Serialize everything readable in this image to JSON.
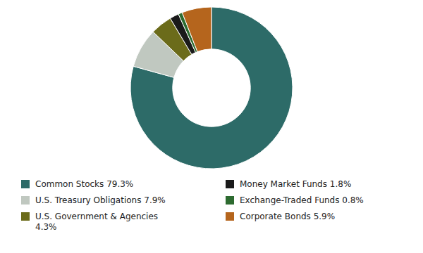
{
  "chart_data": {
    "type": "pie",
    "categories": [
      "Common Stocks 79.3%",
      "U.S. Treasury Obligations 7.9%",
      "U.S. Government & Agencies\n4.3%",
      "Money Market Funds 1.8%",
      "Exchange-Traded Funds 0.8%",
      "Corporate Bonds 5.9%"
    ],
    "values": [
      79.3,
      7.9,
      4.3,
      1.8,
      0.8,
      5.9
    ],
    "colors": [
      "#2d6b68",
      "#c0c8c0",
      "#6b6b1a",
      "#1a1a1a",
      "#2d6b30",
      "#b5651d"
    ],
    "legend": "bottom"
  }
}
